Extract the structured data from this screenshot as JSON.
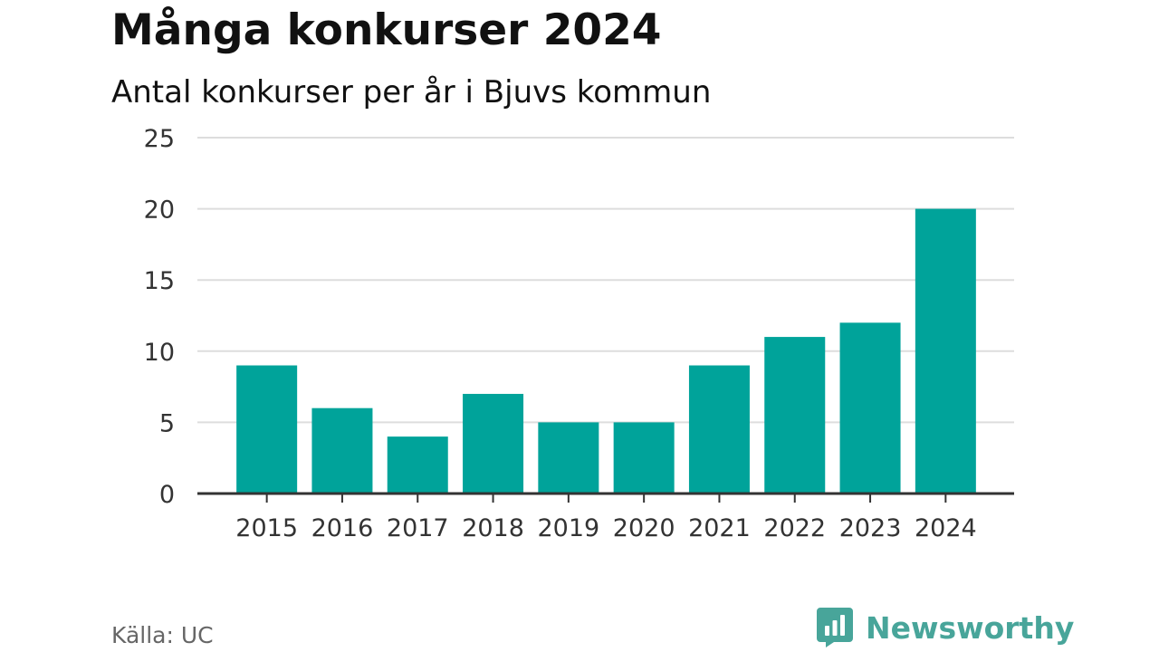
{
  "header": {
    "title": "Många konkurser 2024",
    "subtitle": "Antal konkurser per år i Bjuvs kommun"
  },
  "footer": {
    "source": "Källa: UC",
    "brand": "Newsworthy",
    "brand_icon": "bar-chart-speech-bubble-icon",
    "brand_color": "#48a59a"
  },
  "chart_data": {
    "type": "bar",
    "title": "Många konkurser 2024",
    "subtitle": "Antal konkurser per år i Bjuvs kommun",
    "xlabel": "",
    "ylabel": "",
    "categories": [
      "2015",
      "2016",
      "2017",
      "2018",
      "2019",
      "2020",
      "2021",
      "2022",
      "2023",
      "2024"
    ],
    "values": [
      9,
      6,
      4,
      7,
      5,
      5,
      9,
      11,
      12,
      20
    ],
    "ylim": [
      0,
      25
    ],
    "yticks": [
      0,
      5,
      10,
      15,
      20,
      25
    ],
    "grid": true,
    "legend": "none",
    "bar_color": "#00a39a",
    "grid_color": "#dddddd",
    "axis_color": "#333333"
  }
}
